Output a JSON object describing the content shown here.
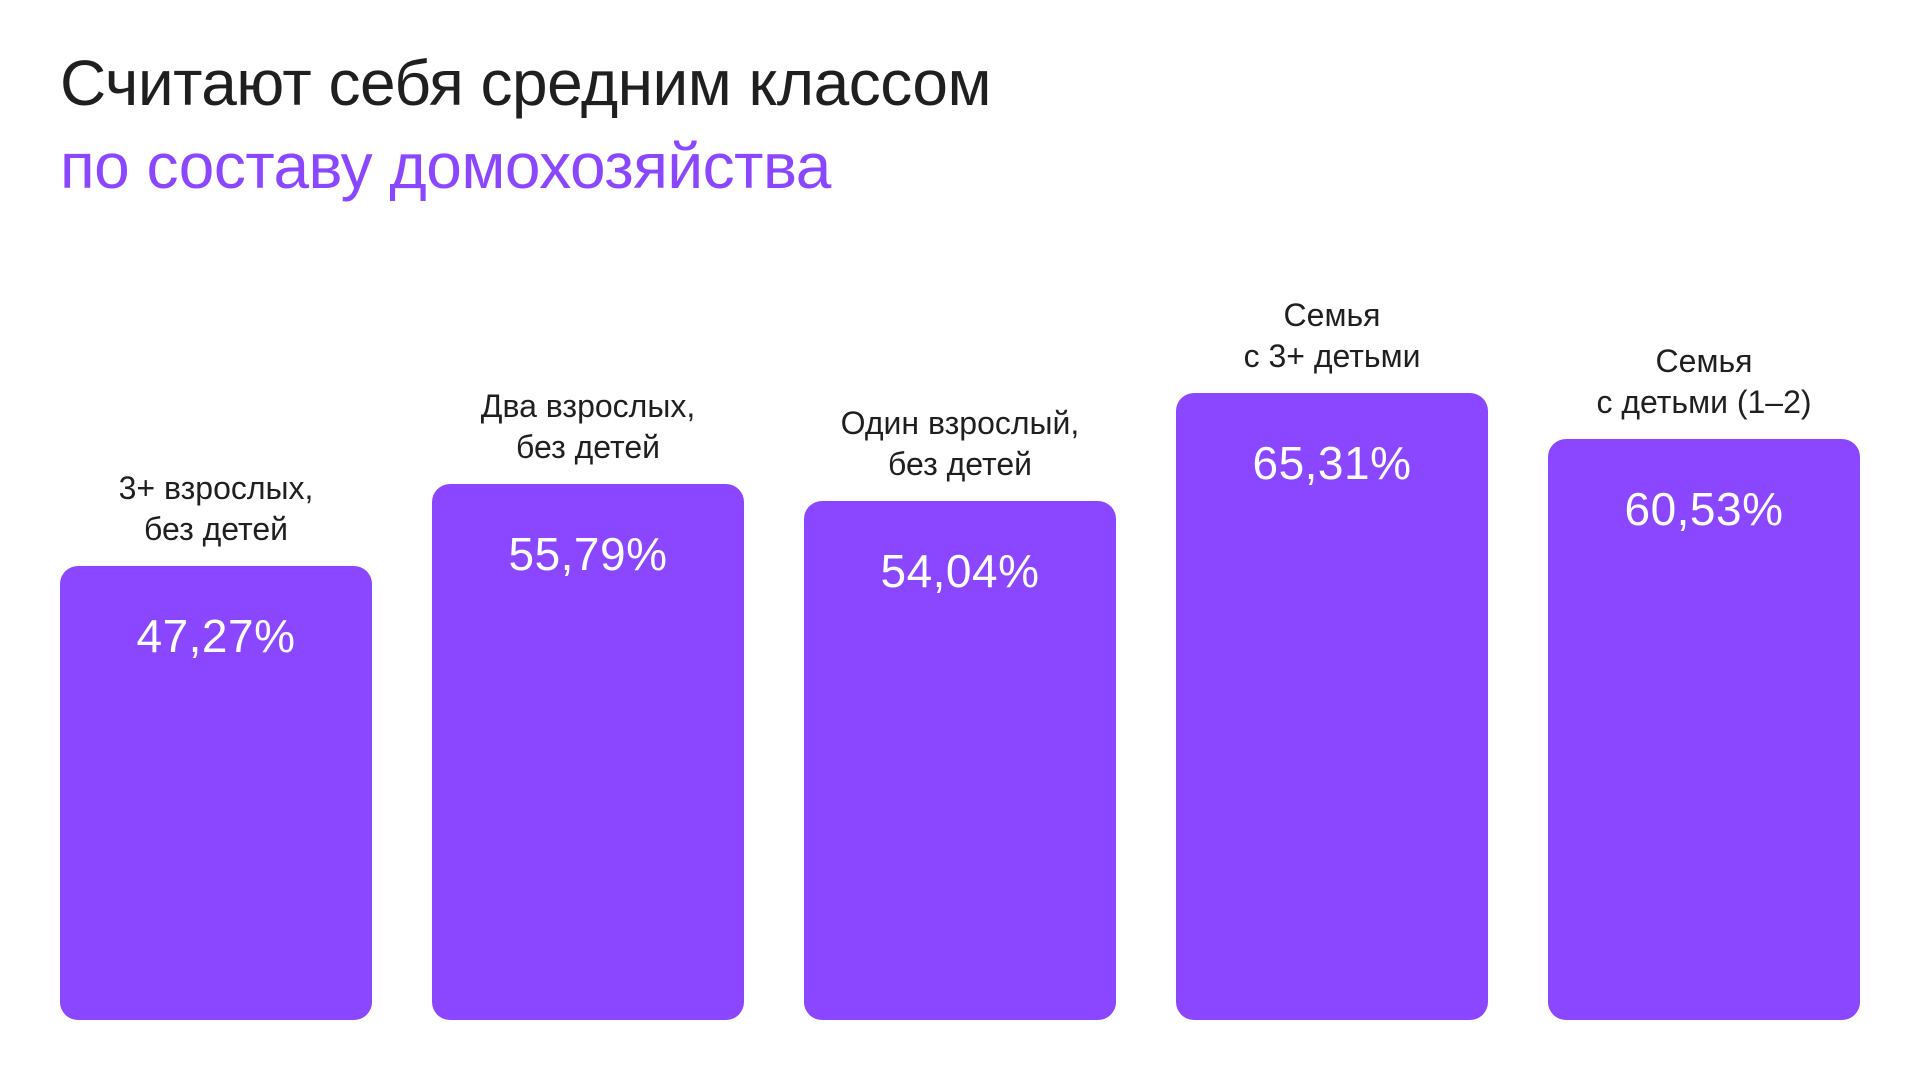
{
  "header": {
    "title": "Считают себя средним классом",
    "subtitle": "по составу домохозяйства"
  },
  "colors": {
    "bar": "#8b46ff",
    "subtitle": "#8b46ff",
    "title": "#1f1f1f",
    "value_text": "#ffffff"
  },
  "bars": [
    {
      "label_line1": "3+ взрослых,",
      "label_line2": "без детей",
      "value": 47.27,
      "value_label": "47,27%"
    },
    {
      "label_line1": "Два взрослых,",
      "label_line2": "без детей",
      "value": 55.79,
      "value_label": "55,79%"
    },
    {
      "label_line1": "Один взрослый,",
      "label_line2": "без детей",
      "value": 54.04,
      "value_label": "54,04%"
    },
    {
      "label_line1": "Семья",
      "label_line2": "с 3+ детьми",
      "value": 65.31,
      "value_label": "65,31%"
    },
    {
      "label_line1": "Семья",
      "label_line2": "с детьми (1–2)",
      "value": 60.53,
      "value_label": "60,53%"
    }
  ],
  "chart_data": {
    "type": "bar",
    "title": "Считают себя средним классом",
    "subtitle": "по составу домохозяйства",
    "categories": [
      "3+ взрослых, без детей",
      "Два взрослых, без детей",
      "Один взрослый, без детей",
      "Семья с 3+ детьми",
      "Семья с детьми (1–2)"
    ],
    "values": [
      47.27,
      55.79,
      54.04,
      65.31,
      60.53
    ],
    "value_labels": [
      "47,27%",
      "55,79%",
      "54,04%",
      "65,31%",
      "60,53%"
    ],
    "unit": "%",
    "xlabel": "",
    "ylabel": "",
    "grid": false,
    "legend": false,
    "data_labels": "inside-top"
  }
}
